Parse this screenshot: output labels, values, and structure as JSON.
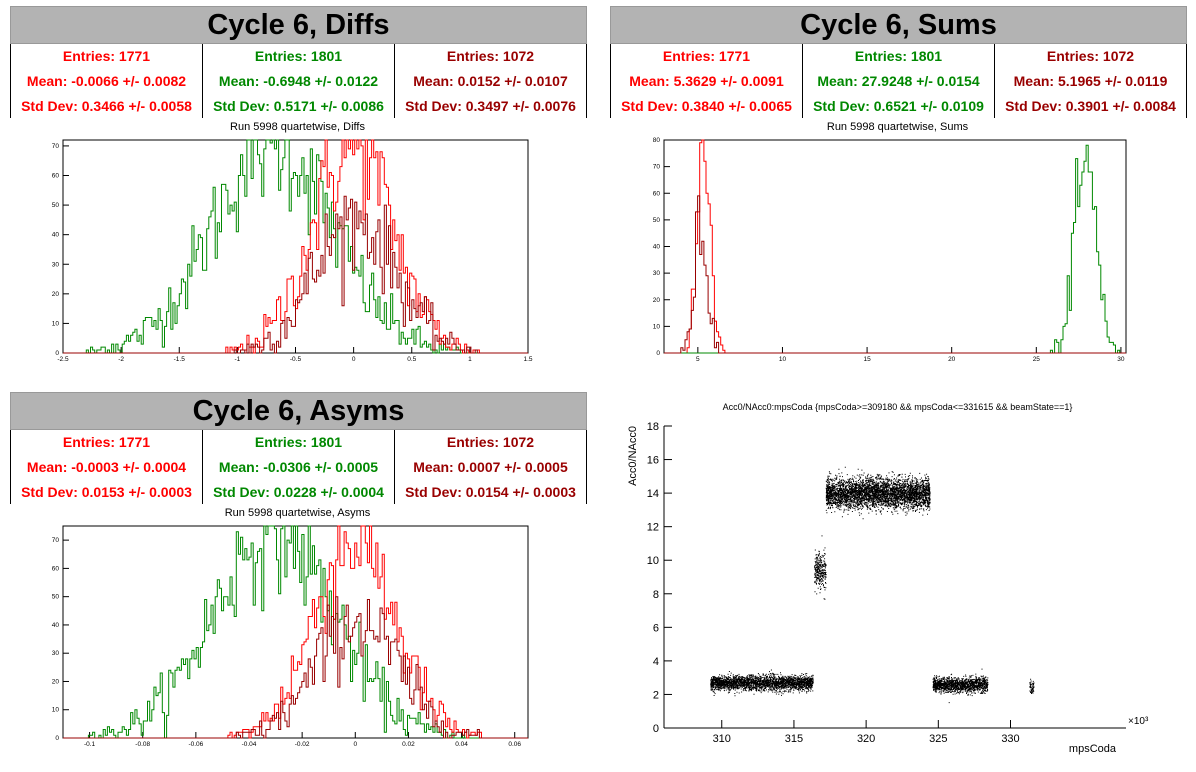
{
  "panels": {
    "diffs": {
      "title": "Cycle 6, Diffs",
      "subtitle": "Run 5998 quartetwise, Diffs",
      "stats": [
        {
          "color": "#ff0000",
          "entries": "Entries: 1771",
          "mean": "Mean: -0.0066 +/- 0.0082",
          "std": "Std Dev: 0.3466 +/- 0.0058"
        },
        {
          "color": "#008800",
          "entries": "Entries: 1801",
          "mean": "Mean: -0.6948 +/- 0.0122",
          "std": "Std Dev: 0.5171 +/- 0.0086"
        },
        {
          "color": "#990000",
          "entries": "Entries: 1072",
          "mean": "Mean: 0.0152 +/- 0.0107",
          "std": "Std Dev: 0.3497 +/- 0.0076"
        }
      ]
    },
    "sums": {
      "title": "Cycle 6, Sums",
      "subtitle": "Run 5998 quartetwise, Sums",
      "stats": [
        {
          "color": "#ff0000",
          "entries": "Entries: 1771",
          "mean": "Mean: 5.3629 +/- 0.0091",
          "std": "Std Dev: 0.3840 +/- 0.0065"
        },
        {
          "color": "#008800",
          "entries": "Entries: 1801",
          "mean": "Mean: 27.9248 +/- 0.0154",
          "std": "Std Dev: 0.6521 +/- 0.0109"
        },
        {
          "color": "#990000",
          "entries": "Entries: 1072",
          "mean": "Mean: 5.1965 +/- 0.0119",
          "std": "Std Dev: 0.3901 +/- 0.0084"
        }
      ]
    },
    "asyms": {
      "title": "Cycle 6, Asyms",
      "subtitle": "Run 5998 quartetwise, Asyms",
      "stats": [
        {
          "color": "#ff0000",
          "entries": "Entries: 1771",
          "mean": "Mean: -0.0003 +/- 0.0004",
          "std": "Std Dev: 0.0153 +/- 0.0003"
        },
        {
          "color": "#008800",
          "entries": "Entries: 1801",
          "mean": "Mean: -0.0306 +/- 0.0005",
          "std": "Std Dev: 0.0228 +/- 0.0004"
        },
        {
          "color": "#990000",
          "entries": "Entries: 1072",
          "mean": "Mean: 0.0007 +/- 0.0005",
          "std": "Std Dev: 0.0154 +/- 0.0003"
        }
      ]
    },
    "scatter": {
      "title": "Acc0/NAcc0:mpsCoda {mpsCoda>=309180 && mpsCoda<=331615 && beamState==1}"
    }
  },
  "chart_data": [
    {
      "type": "histogram",
      "title": "Run 5998 quartetwise, Diffs",
      "xlim": [
        -2.5,
        1.5
      ],
      "ylim": [
        0,
        72
      ],
      "xticks": [
        -2.5,
        -2,
        -1.5,
        -1,
        -0.5,
        0,
        0.5,
        1,
        1.5
      ],
      "yticks": [
        0,
        10,
        20,
        30,
        40,
        50,
        60,
        70
      ],
      "series": [
        {
          "color": "#008800",
          "mean": -0.6948,
          "std": 0.5171,
          "peak": 71
        },
        {
          "color": "#ff0000",
          "mean": -0.0066,
          "std": 0.3466,
          "peak": 70
        },
        {
          "color": "#990000",
          "mean": 0.0152,
          "std": 0.3497,
          "peak": 45
        }
      ]
    },
    {
      "type": "histogram",
      "title": "Run 5998 quartetwise, Sums",
      "xlim": [
        3,
        30.3
      ],
      "ylim": [
        0,
        80
      ],
      "xticks": [
        5,
        10,
        15,
        20,
        25,
        30
      ],
      "yticks": [
        0,
        10,
        20,
        30,
        40,
        50,
        60,
        70,
        80
      ],
      "series": [
        {
          "color": "#ff0000",
          "mean": 5.3629,
          "std": 0.384,
          "peak": 77
        },
        {
          "color": "#008800",
          "mean": 27.9248,
          "std": 0.6521,
          "peak": 70
        },
        {
          "color": "#990000",
          "mean": 5.1965,
          "std": 0.3901,
          "peak": 48
        }
      ]
    },
    {
      "type": "histogram",
      "title": "Run 5998 quartetwise, Asyms",
      "xlim": [
        -0.11,
        0.065
      ],
      "ylim": [
        0,
        75
      ],
      "xticks": [
        -0.1,
        -0.08,
        -0.06,
        -0.04,
        -0.02,
        0,
        0.02,
        0.04,
        0.06
      ],
      "yticks": [
        0,
        10,
        20,
        30,
        40,
        50,
        60,
        70
      ],
      "series": [
        {
          "color": "#008800",
          "mean": -0.0306,
          "std": 0.0228,
          "peak": 73
        },
        {
          "color": "#ff0000",
          "mean": -0.0003,
          "std": 0.0153,
          "peak": 70
        },
        {
          "color": "#990000",
          "mean": 0.0007,
          "std": 0.0154,
          "peak": 42
        }
      ]
    },
    {
      "type": "scatter",
      "title": "Acc0/NAcc0:mpsCoda {mpsCoda>=309180 && mpsCoda<=331615 && beamState==1}",
      "xlabel": "mpsCoda",
      "ylabel": "Acc0/NAcc0",
      "x_multiplier": "×10³",
      "xlim": [
        306,
        338
      ],
      "ylim": [
        0,
        18
      ],
      "xticks": [
        310,
        315,
        320,
        325,
        330
      ],
      "yticks": [
        0,
        2,
        4,
        6,
        8,
        10,
        12,
        14,
        16,
        18
      ],
      "clusters": [
        {
          "x": [
            309.2,
            316.3
          ],
          "y_center": 2.7,
          "y_spread": 0.4,
          "density": 2600
        },
        {
          "x": [
            316.4,
            317.2
          ],
          "y_center": 9.4,
          "y_spread": 1.0,
          "density": 300
        },
        {
          "x": [
            317.2,
            324.4
          ],
          "y_center": 14.0,
          "y_spread": 0.8,
          "density": 4200
        },
        {
          "x": [
            324.6,
            328.4
          ],
          "y_center": 2.6,
          "y_spread": 0.4,
          "density": 1400
        },
        {
          "x": [
            331.3,
            331.6
          ],
          "y_center": 2.5,
          "y_spread": 0.4,
          "density": 60
        }
      ]
    }
  ]
}
